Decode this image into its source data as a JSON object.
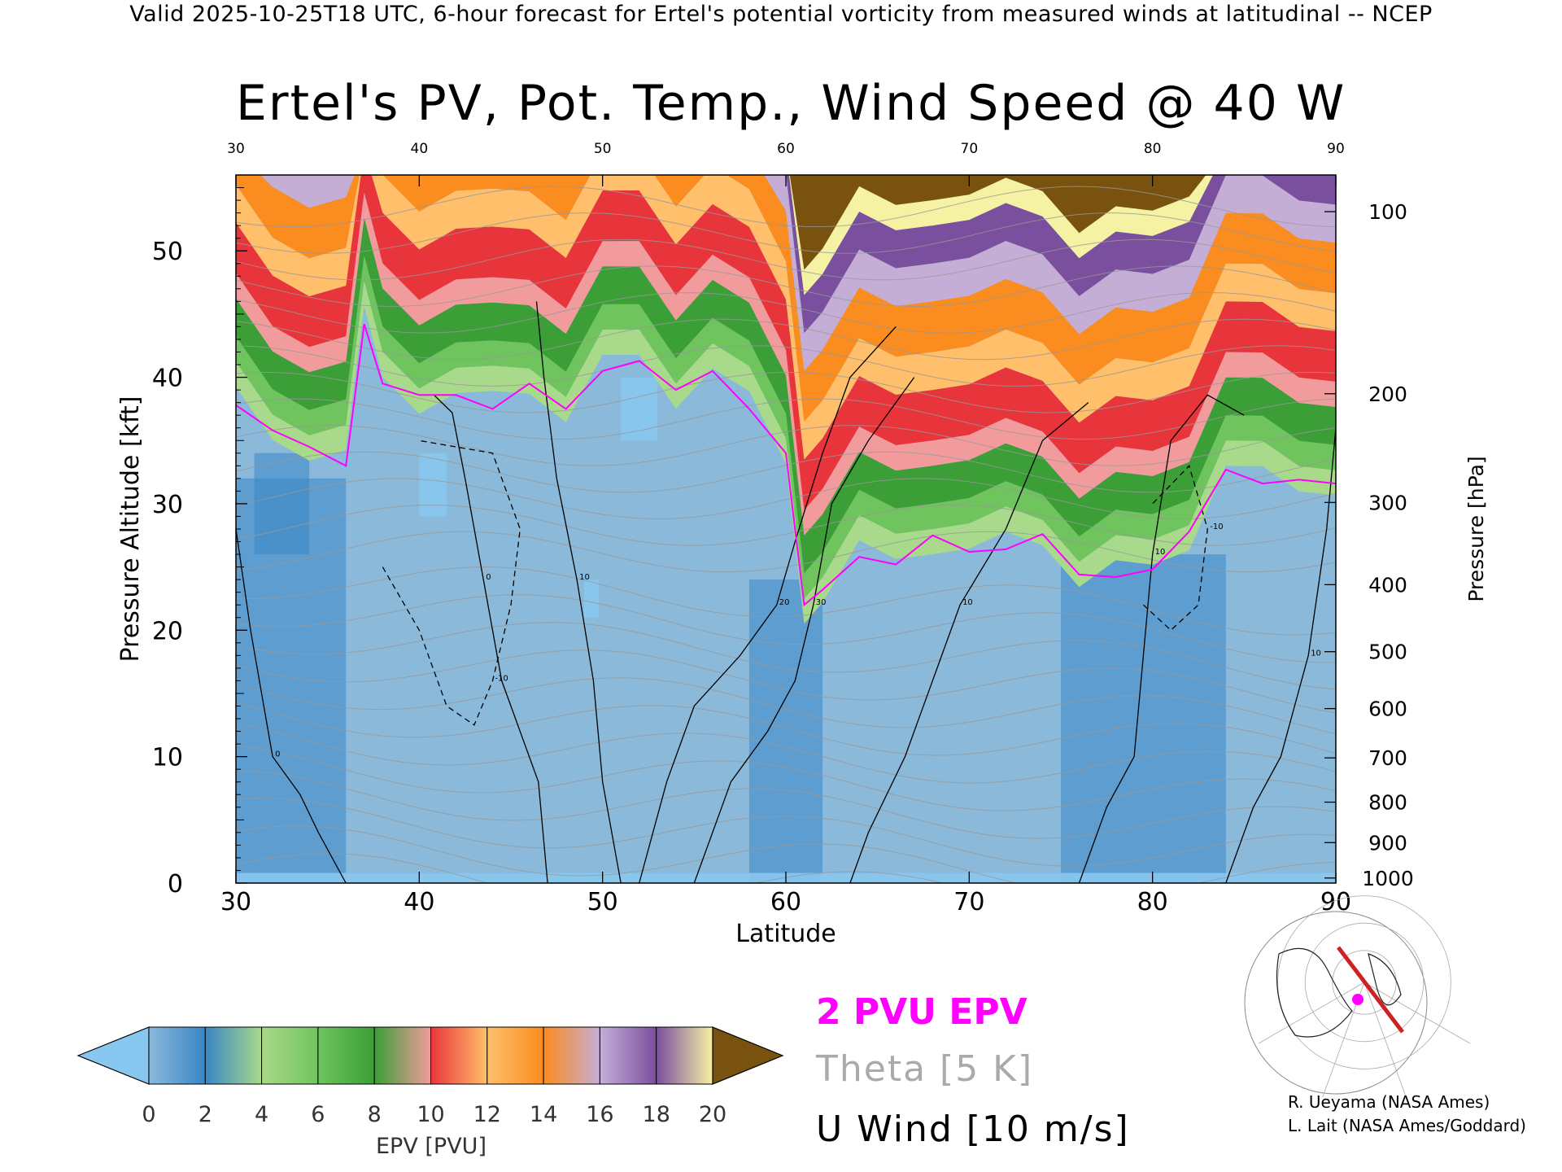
{
  "header": {
    "banner": "Valid 2025-10-25T18 UTC, 6-hour forecast for Ertel's potential vorticity from measured winds at latitudinal -- NCEP",
    "title": "Ertel's PV, Pot. Temp., Wind Speed @ 40 W"
  },
  "chart_data": {
    "type": "heatmap",
    "xlabel": "Latitude",
    "ylabel_left": "Pressure Altitude [kft]",
    "ylabel_right": "Pressure [hPa]",
    "xlim": [
      30,
      90
    ],
    "ylim": [
      0,
      56
    ],
    "x_ticks": [
      30,
      40,
      50,
      60,
      70,
      80,
      90
    ],
    "y_ticks_left": [
      0,
      10,
      20,
      30,
      40,
      50
    ],
    "y_ticks_right": [
      {
        "p": 100,
        "kft": 53.1
      },
      {
        "p": 200,
        "kft": 38.7
      },
      {
        "p": 300,
        "kft": 30.1
      },
      {
        "p": 400,
        "kft": 23.6
      },
      {
        "p": 500,
        "kft": 18.3
      },
      {
        "p": 600,
        "kft": 13.8
      },
      {
        "p": 700,
        "kft": 9.9
      },
      {
        "p": 800,
        "kft": 6.4
      },
      {
        "p": 900,
        "kft": 3.2
      },
      {
        "p": 1000,
        "kft": 0.4
      }
    ],
    "colorbar": {
      "label": "EPV [PVU]",
      "ticks": [
        0,
        2,
        4,
        6,
        8,
        10,
        12,
        14,
        16,
        18,
        20
      ],
      "colors": [
        "#88c8f0",
        "#8ab9d9",
        "#3a86c6",
        "#a9d98a",
        "#6fc45d",
        "#3b9e37",
        "#f19b9c",
        "#e8353c",
        "#ffbf6b",
        "#fb8c1f",
        "#c5aed6",
        "#7a4f9e",
        "#f6f2a4",
        "#dcc070",
        "#7a5210"
      ]
    },
    "pv2_tropopause_kft": [
      [
        30,
        37.8
      ],
      [
        32,
        35.8
      ],
      [
        34,
        34.5
      ],
      [
        36,
        33
      ],
      [
        37,
        44.2
      ],
      [
        38,
        39.5
      ],
      [
        40,
        38.6
      ],
      [
        42,
        38.6
      ],
      [
        44,
        37.5
      ],
      [
        46,
        39.5
      ],
      [
        48,
        37.5
      ],
      [
        50,
        40.5
      ],
      [
        52,
        41.3
      ],
      [
        54,
        39
      ],
      [
        56,
        40.5
      ],
      [
        58,
        37.5
      ],
      [
        60,
        34
      ],
      [
        61,
        22
      ],
      [
        62,
        23.2
      ],
      [
        64,
        25.8
      ],
      [
        66,
        25.2
      ],
      [
        68,
        27.5
      ],
      [
        70,
        26.2
      ],
      [
        72,
        26.4
      ],
      [
        74,
        27.6
      ],
      [
        76,
        24.4
      ],
      [
        78,
        24.2
      ],
      [
        80,
        24.8
      ],
      [
        82,
        27.8
      ],
      [
        84,
        32.7
      ],
      [
        86,
        31.6
      ],
      [
        88,
        31.9
      ],
      [
        90,
        31.6
      ]
    ],
    "u_wind_contours": [
      {
        "label": "0",
        "points": [
          [
            36,
            0
          ],
          [
            34.5,
            4
          ],
          [
            33.5,
            7
          ],
          [
            32,
            10
          ],
          [
            30.8,
            20
          ],
          [
            30,
            28
          ]
        ]
      },
      {
        "label": "0",
        "points": [
          [
            47,
            0
          ],
          [
            46.5,
            8
          ],
          [
            44.5,
            16
          ],
          [
            43.5,
            24
          ],
          [
            42.5,
            32
          ],
          [
            41.8,
            37.2
          ],
          [
            40.8,
            38.6
          ]
        ]
      },
      {
        "label": "10",
        "points": [
          [
            51,
            0
          ],
          [
            50,
            8
          ],
          [
            49.5,
            16
          ],
          [
            48.6,
            24
          ],
          [
            47.5,
            32
          ],
          [
            46.8,
            40
          ],
          [
            46.4,
            46
          ]
        ]
      },
      {
        "label": "20",
        "points": [
          [
            52,
            0
          ],
          [
            53.5,
            8
          ],
          [
            55,
            14
          ],
          [
            57.5,
            18
          ],
          [
            59.5,
            22
          ],
          [
            60.5,
            27
          ],
          [
            62,
            34
          ],
          [
            63.5,
            40
          ],
          [
            66,
            44
          ]
        ]
      },
      {
        "label": "30",
        "points": [
          [
            55,
            0
          ],
          [
            57,
            8
          ],
          [
            59,
            12
          ],
          [
            60.5,
            16
          ],
          [
            61.5,
            22
          ],
          [
            62.5,
            30
          ],
          [
            64.5,
            35
          ],
          [
            67,
            40
          ]
        ]
      },
      {
        "label": "10",
        "points": [
          [
            63.5,
            0
          ],
          [
            64.5,
            4
          ],
          [
            66.5,
            10
          ],
          [
            68,
            16
          ],
          [
            69.5,
            22
          ],
          [
            72,
            28
          ],
          [
            74,
            35
          ],
          [
            76.5,
            38
          ]
        ]
      },
      {
        "label": "10",
        "points": [
          [
            76,
            0
          ],
          [
            77.5,
            6
          ],
          [
            79,
            10
          ],
          [
            79.5,
            18
          ],
          [
            80,
            26
          ],
          [
            81,
            35
          ],
          [
            83,
            38.6
          ],
          [
            85,
            37
          ]
        ]
      },
      {
        "label": "10",
        "points": [
          [
            84,
            0
          ],
          [
            85.5,
            6
          ],
          [
            87,
            10
          ],
          [
            88.5,
            18
          ],
          [
            89.5,
            28
          ],
          [
            90,
            36
          ]
        ]
      },
      {
        "label": "-10",
        "points": [
          [
            38,
            25
          ],
          [
            40,
            20
          ],
          [
            41.5,
            14
          ],
          [
            43,
            12.5
          ],
          [
            44,
            16
          ],
          [
            45,
            22
          ],
          [
            45.5,
            28
          ],
          [
            44,
            34
          ],
          [
            40,
            35
          ]
        ],
        "dashed": true
      },
      {
        "label": "-10",
        "points": [
          [
            79.5,
            22
          ],
          [
            81,
            20
          ],
          [
            82.5,
            22
          ],
          [
            83,
            28
          ],
          [
            82,
            33
          ],
          [
            80,
            30
          ]
        ],
        "dashed": true
      }
    ],
    "legend": [
      {
        "label": "2 PVU EPV",
        "color": "#ff00ff"
      },
      {
        "label": "Theta [5 K]",
        "color": "#aaaaaa"
      },
      {
        "label": "U Wind [10 m/s]",
        "color": "#000000"
      }
    ],
    "grid": false,
    "legend_placement": "bottom-center"
  },
  "credits": {
    "line1": "R. Ueyama (NASA Ames)",
    "line2": "L. Lait (NASA Ames/Goddard)"
  },
  "map_inset": {
    "icon": "globe-map-icon",
    "track_color": "#cc2222",
    "marker_color": "#ff00ff"
  }
}
